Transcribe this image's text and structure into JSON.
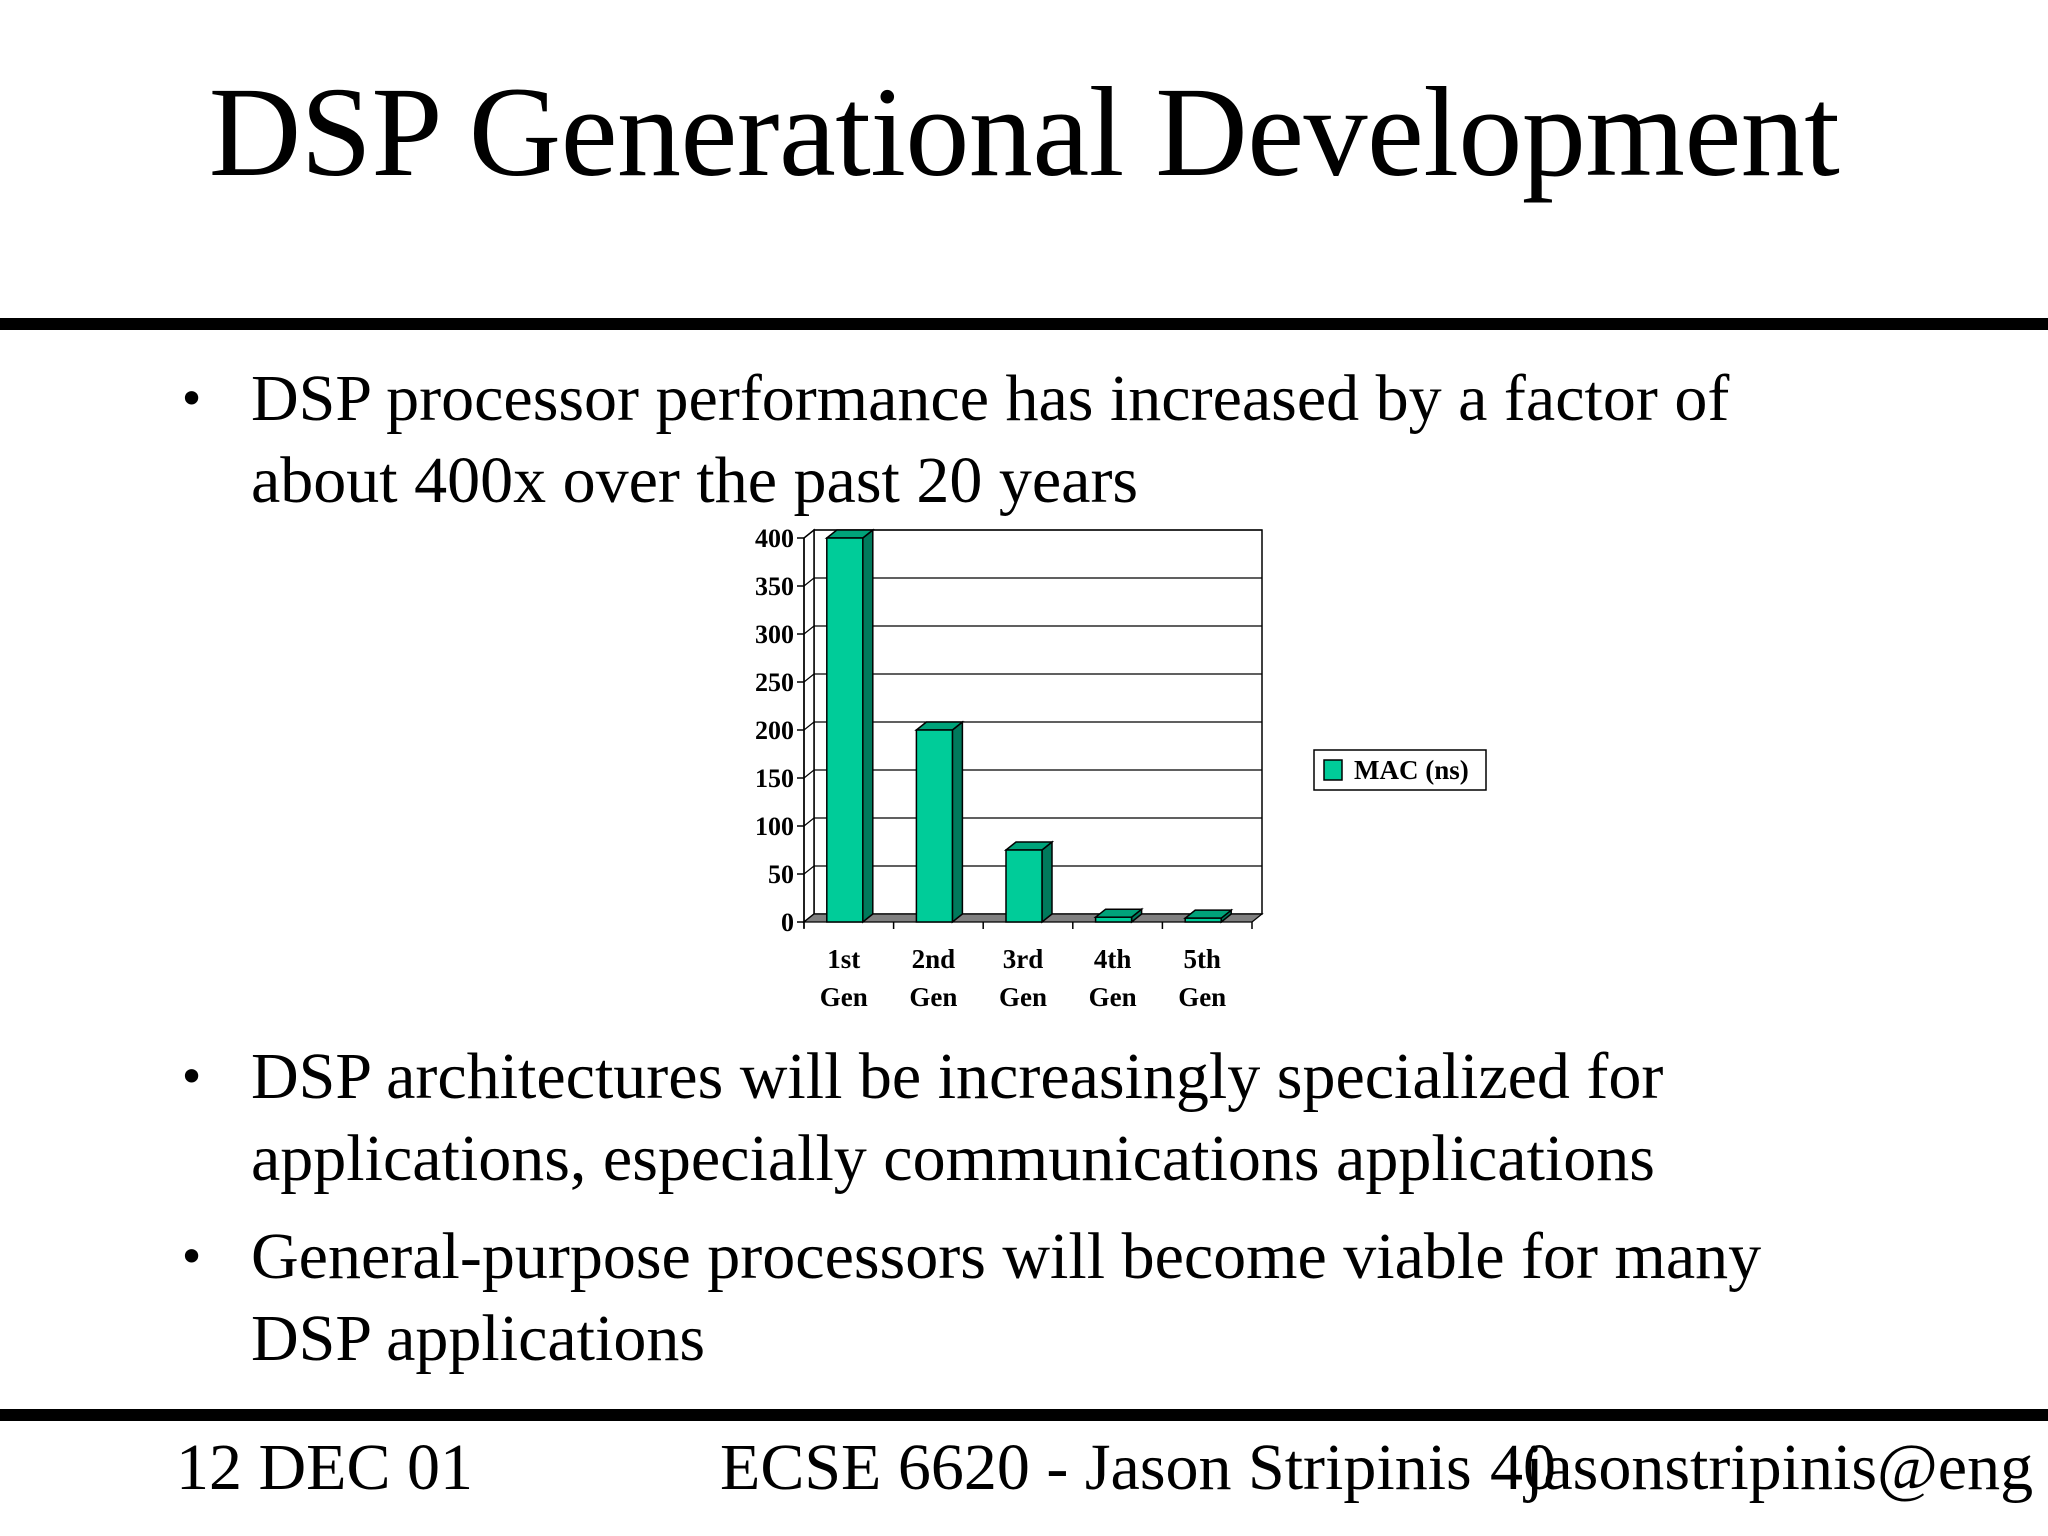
{
  "slide": {
    "title": "DSP Generational Development",
    "bullets": [
      {
        "line1": "DSP processor performance has increased by a factor of",
        "line2": "about 400x over the past 20 years"
      },
      {
        "line1": "DSP architectures will be increasingly specialized for",
        "line2": "applications, especially communications applications"
      },
      {
        "line1": "General-purpose processors will become viable for many",
        "line2": "DSP applications"
      }
    ],
    "bullet_glyph": "•"
  },
  "footer": {
    "date": "12 DEC 01",
    "course": "ECSE 6620 - Jason Stripinis",
    "page": "40",
    "email": "jasonstripinis@eng"
  },
  "colors": {
    "bar_front": "#00CC99",
    "bar_side": "#007A5C",
    "bar_top": "#00A37A",
    "floor": "#808080",
    "wall_line": "#000000"
  },
  "chart_data": {
    "type": "bar",
    "title": "",
    "categories": [
      {
        "line1": "1st",
        "line2": "Gen"
      },
      {
        "line1": "2nd",
        "line2": "Gen"
      },
      {
        "line1": "3rd",
        "line2": "Gen"
      },
      {
        "line1": "4th",
        "line2": "Gen"
      },
      {
        "line1": "5th",
        "line2": "Gen"
      }
    ],
    "series": [
      {
        "name": "MAC (ns)",
        "values": [
          400,
          200,
          75,
          5,
          4
        ]
      }
    ],
    "yticks": [
      0,
      50,
      100,
      150,
      200,
      250,
      300,
      350,
      400
    ],
    "ylim": [
      0,
      400
    ],
    "grid": true,
    "legend": "right",
    "style": "3d-column"
  }
}
